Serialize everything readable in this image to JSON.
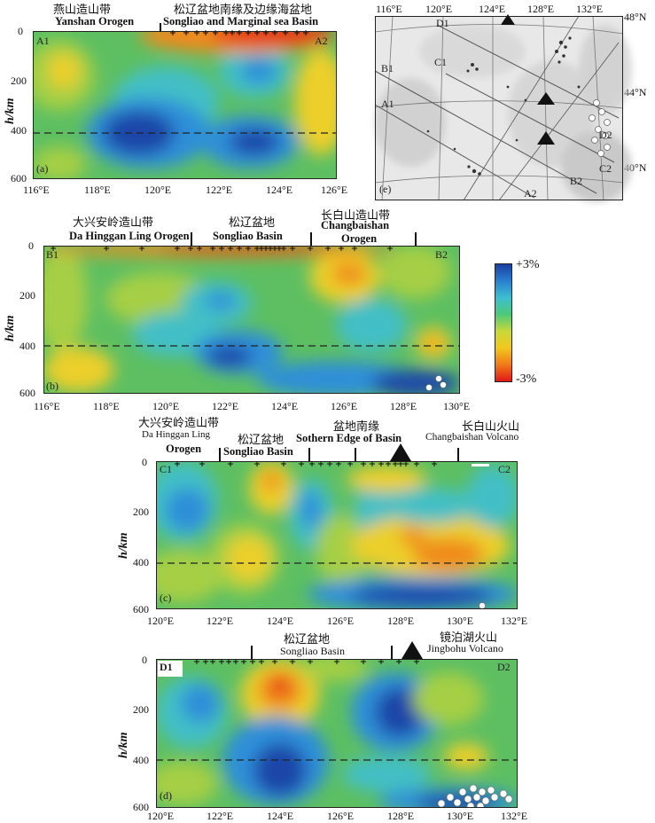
{
  "figure": {
    "panel_a": {
      "tag": "(a)",
      "left_end": "A1",
      "right_end": "A2",
      "header_left_cn": "燕山造山带",
      "header_left_en": "Yanshan  Orogen",
      "header_right_cn": "松辽盆地南缘及边缘海盆地",
      "header_right_en": "Songliao and Marginal sea Basin",
      "y_label": "h/km",
      "y_ticks": [
        "0",
        "200",
        "400",
        "600"
      ],
      "x_ticks": [
        "116°E",
        "118°E",
        "120°E",
        "122°E",
        "124°E",
        "126°E"
      ]
    },
    "panel_b": {
      "tag": "(b)",
      "left_end": "B1",
      "right_end": "B2",
      "header_1_cn": "大兴安岭造山带",
      "header_1_en": "Da Hinggan Ling  Orogen",
      "header_2_cn": "松辽盆地",
      "header_2_en": "Songliao Basin",
      "header_3_cn": "长白山造山带",
      "header_3_en1": "Changbaishan",
      "header_3_en2": "Orogen",
      "y_label": "h/km",
      "y_ticks": [
        "0",
        "200",
        "400",
        "600"
      ],
      "x_ticks": [
        "116°E",
        "118°E",
        "120°E",
        "122°E",
        "124°E",
        "126°E",
        "128°E",
        "130°E"
      ]
    },
    "panel_c": {
      "tag": "(c)",
      "left_end": "C1",
      "right_end": "C2",
      "header_1_cn": "大兴安岭造山带",
      "header_1_en1": "Da Hinggan Ling",
      "header_1_en2": "Orogen",
      "header_2_cn": "松辽盆地",
      "header_2_en": "Songliao Basin",
      "header_3_cn": "盆地南缘",
      "header_3_en": "Sothern Edge  of Basin",
      "header_4_cn": "长白山火山",
      "header_4_en": "Changbaishan Volcano",
      "y_label": "h/km",
      "y_ticks": [
        "0",
        "200",
        "400",
        "600"
      ],
      "x_ticks": [
        "120°E",
        "122°E",
        "124°E",
        "126°E",
        "128°E",
        "130°E",
        "132°E"
      ]
    },
    "panel_d": {
      "tag": "(d)",
      "left_end": "D1",
      "right_end": "D2",
      "header_1_cn": "松辽盆地",
      "header_1_en": "Songliao Basin",
      "header_2_cn": "镜泊湖火山",
      "header_2_en": "Jingbohu Volcano",
      "y_label": "h/km",
      "y_ticks": [
        "0",
        "200",
        "400",
        "600"
      ],
      "x_ticks": [
        "120°E",
        "122°E",
        "124°E",
        "126°E",
        "128°E",
        "130°E",
        "132°E"
      ]
    },
    "panel_e": {
      "tag": "(e)",
      "top_ticks": [
        "116°E",
        "120°E",
        "124°E",
        "128°E",
        "132°E"
      ],
      "right_ticks": [
        "48°N",
        "44°N",
        "40°N"
      ],
      "profile_labels": [
        "D1",
        "C1",
        "B1",
        "A1",
        "D2",
        "C2",
        "B2",
        "A2"
      ]
    },
    "colorbar": {
      "max_label": "+3%",
      "min_label": "-3%",
      "colors": [
        "#1a3fa0",
        "#2a7fd0",
        "#3dbfd0",
        "#4ec87a",
        "#c8d83a",
        "#f2c81e",
        "#f07a18",
        "#e01818"
      ]
    },
    "palette": {
      "deep_blue": "#1c46a8",
      "blue": "#2f8fd8",
      "cyan": "#43bfc6",
      "green": "#5dbf62",
      "light_green": "#a6cf44",
      "yellow": "#eccf2a",
      "orange": "#f08a1e",
      "red": "#e42a18"
    }
  }
}
